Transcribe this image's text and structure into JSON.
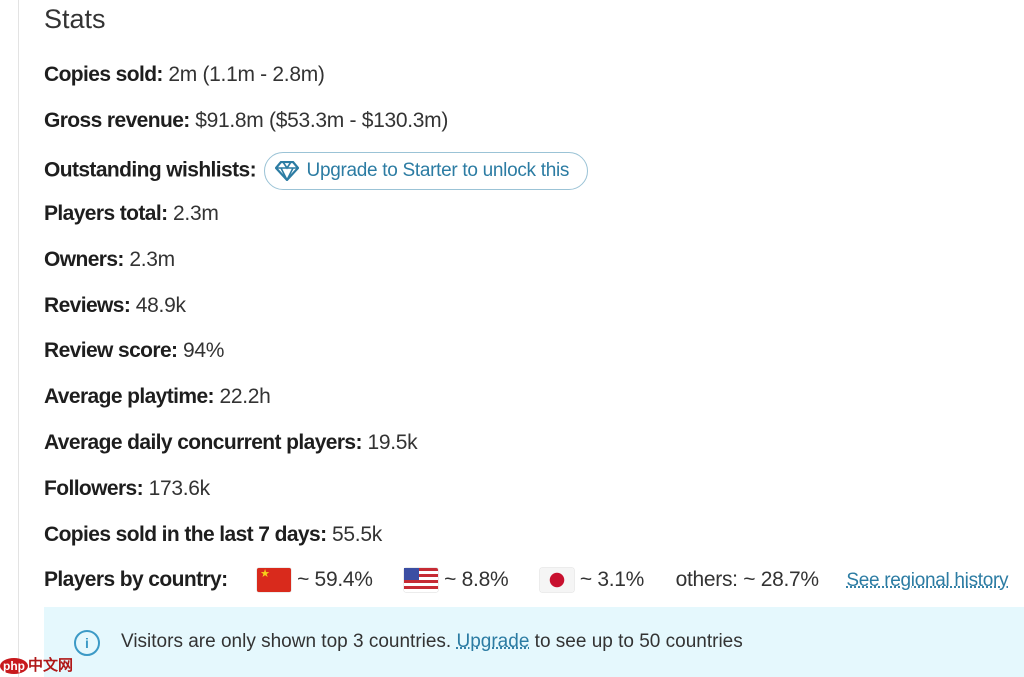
{
  "title": "Stats",
  "stats": [
    {
      "label": "Copies sold:",
      "value": "2m (1.1m - 2.8m)"
    },
    {
      "label": "Gross revenue:",
      "value": "$91.8m ($53.3m - $130.3m)"
    },
    {
      "label": "Outstanding wishlists:",
      "value": ""
    },
    {
      "label": "Players total:",
      "value": "2.3m"
    },
    {
      "label": "Owners:",
      "value": "2.3m"
    },
    {
      "label": "Reviews:",
      "value": "48.9k"
    },
    {
      "label": "Review score:",
      "value": "94%"
    },
    {
      "label": "Average playtime:",
      "value": "22.2h"
    },
    {
      "label": "Average daily concurrent players:",
      "value": "19.5k"
    },
    {
      "label": "Followers:",
      "value": "173.6k"
    },
    {
      "label": "Copies sold in the last 7 days:",
      "value": "55.5k"
    }
  ],
  "upgrade_pill": {
    "icon": "diamond-icon",
    "label": "Upgrade to Starter to unlock this"
  },
  "countries": {
    "label": "Players by country:",
    "items": [
      {
        "flag": "china-flag",
        "value": "~ 59.4%"
      },
      {
        "flag": "usa-flag",
        "value": "~ 8.8%"
      },
      {
        "flag": "japan-flag",
        "value": "~ 3.1%"
      }
    ],
    "others": "others: ~ 28.7%",
    "link": "See regional history"
  },
  "info": {
    "icon": "info-icon",
    "text_before": "Visitors are only shown top 3 countries. ",
    "link": "Upgrade",
    "text_after": " to see up to 50 countries"
  },
  "watermark": {
    "badge": "php",
    "text": "中文网"
  },
  "colors": {
    "accent": "#2c7ca3",
    "info_bg": "#e5f8fd"
  }
}
